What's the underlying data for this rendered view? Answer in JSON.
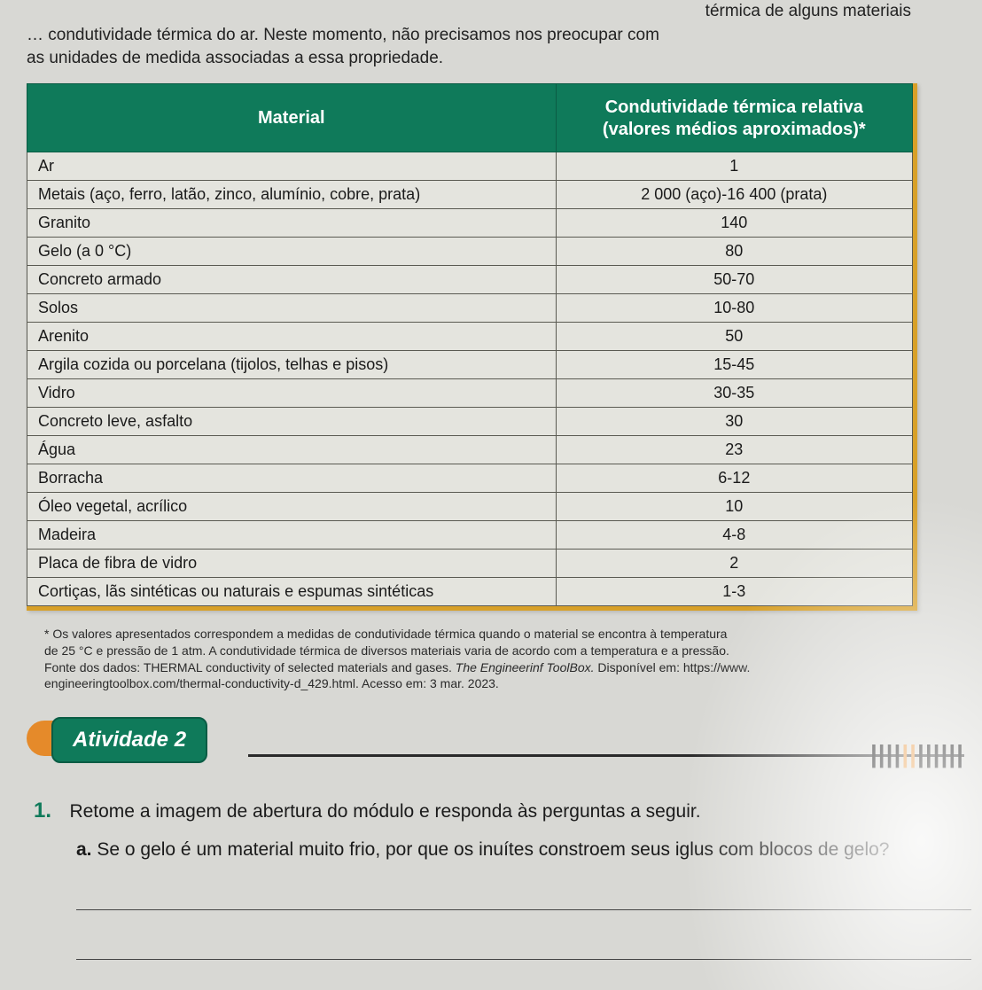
{
  "intro": {
    "line1_fragment": "térmica de alguns materiais",
    "line2": "… condutividade térmica do ar. Neste momento, não precisamos nos preocupar com",
    "line3": "as unidades de medida associadas a essa propriedade."
  },
  "table": {
    "header_material": "Material",
    "header_value_l1": "Condutividade térmica relativa",
    "header_value_l2": "(valores médios aproximados)*",
    "header_bg": "#0f7a5a",
    "header_fg": "#ffffff",
    "border_accent": "#d8a028",
    "cell_border": "#5a5a52",
    "cell_bg": "#e4e4de",
    "rows": [
      {
        "material": "Ar",
        "value": "1"
      },
      {
        "material": "Metais (aço, ferro, latão, zinco, alumínio, cobre, prata)",
        "value": "2 000 (aço)-16 400 (prata)"
      },
      {
        "material": "Granito",
        "value": "140"
      },
      {
        "material": "Gelo (a 0 °C)",
        "value": "80"
      },
      {
        "material": "Concreto armado",
        "value": "50-70"
      },
      {
        "material": "Solos",
        "value": "10-80"
      },
      {
        "material": "Arenito",
        "value": "50"
      },
      {
        "material": "Argila cozida ou porcelana (tijolos, telhas e pisos)",
        "value": "15-45"
      },
      {
        "material": "Vidro",
        "value": "30-35"
      },
      {
        "material": "Concreto leve, asfalto",
        "value": "30"
      },
      {
        "material": "Água",
        "value": "23"
      },
      {
        "material": "Borracha",
        "value": "6-12"
      },
      {
        "material": "Óleo vegetal, acrílico",
        "value": "10"
      },
      {
        "material": "Madeira",
        "value": "4-8"
      },
      {
        "material": "Placa de fibra de vidro",
        "value": "2"
      },
      {
        "material": "Cortiças, lãs sintéticas ou naturais e espumas sintéticas",
        "value": "1-3"
      }
    ]
  },
  "footnote": {
    "l1": "* Os valores apresentados correspondem a medidas de condutividade térmica quando o material se encontra à temperatura",
    "l2": "de 25 °C e pressão de 1 atm. A condutividade térmica de diversos materiais varia de acordo com a temperatura e a pressão.",
    "l3a": "Fonte dos dados: THERMAL conductivity of selected materials and gases. ",
    "l3b": "The Engineerinf ToolBox.",
    "l3c": " Disponível em: https://www.",
    "l4": "engineeringtoolbox.com/thermal-conductivity-d_429.html. Acesso em: 3 mar. 2023."
  },
  "activity": {
    "label": "Atividade 2",
    "badge_bg": "#0f7a5a",
    "accent": "#e58a2a"
  },
  "question": {
    "num": "1.",
    "text": "Retome a imagem de abertura do módulo e responda às perguntas a seguir.",
    "sub_label": "a.",
    "sub_text": "Se o gelo é um material muito frio, por que os inuítes constroem seus iglus com blocos de gelo?"
  }
}
